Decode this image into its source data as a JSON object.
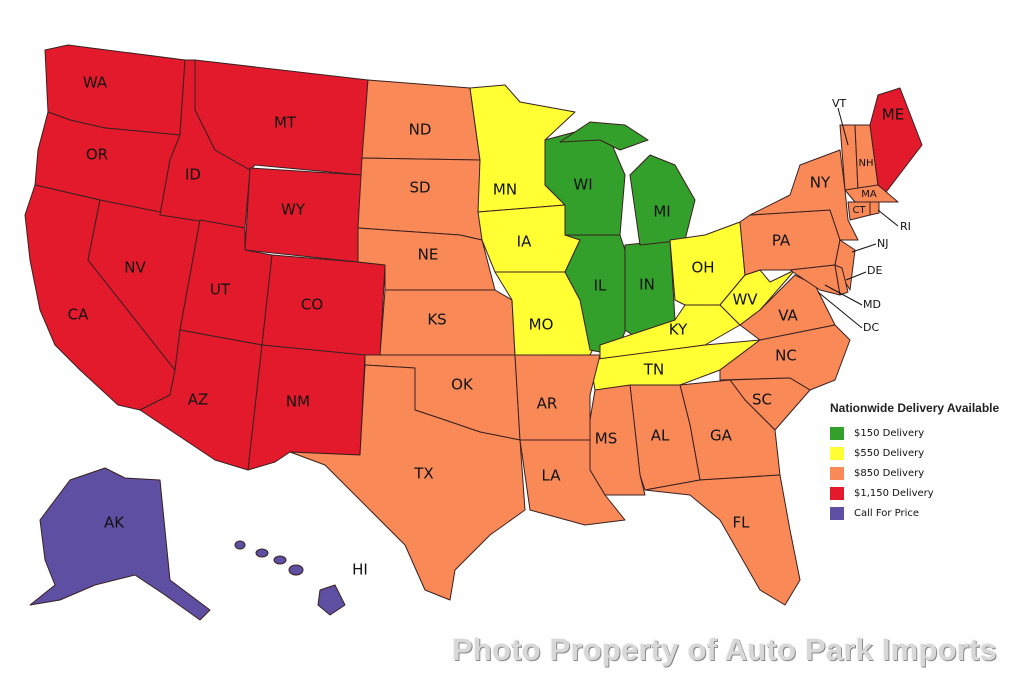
{
  "legend": {
    "title": "Nationwide Delivery Available",
    "items": [
      {
        "tier": "green",
        "label": "$150 Delivery",
        "color": "#34a02c"
      },
      {
        "tier": "yellow",
        "label": "$550 Delivery",
        "color": "#ffff33"
      },
      {
        "tier": "orange",
        "label": "$850 Delivery",
        "color": "#f98a58"
      },
      {
        "tier": "red",
        "label": "$1,150 Delivery",
        "color": "#e31a2c"
      },
      {
        "tier": "purple",
        "label": "Call For Price",
        "color": "#5e4fa2"
      }
    ]
  },
  "states": {
    "WA": {
      "label": "WA",
      "tier": "red"
    },
    "OR": {
      "label": "OR",
      "tier": "red"
    },
    "CA": {
      "label": "CA",
      "tier": "red"
    },
    "NV": {
      "label": "NV",
      "tier": "red"
    },
    "ID": {
      "label": "ID",
      "tier": "red"
    },
    "MT": {
      "label": "MT",
      "tier": "red"
    },
    "WY": {
      "label": "WY",
      "tier": "red"
    },
    "UT": {
      "label": "UT",
      "tier": "red"
    },
    "CO": {
      "label": "CO",
      "tier": "red"
    },
    "AZ": {
      "label": "AZ",
      "tier": "red"
    },
    "NM": {
      "label": "NM",
      "tier": "red"
    },
    "ME": {
      "label": "ME",
      "tier": "red"
    },
    "ND": {
      "label": "ND",
      "tier": "orange"
    },
    "SD": {
      "label": "SD",
      "tier": "orange"
    },
    "NE": {
      "label": "NE",
      "tier": "orange"
    },
    "KS": {
      "label": "KS",
      "tier": "orange"
    },
    "OK": {
      "label": "OK",
      "tier": "orange"
    },
    "TX": {
      "label": "TX",
      "tier": "orange"
    },
    "AR": {
      "label": "AR",
      "tier": "orange"
    },
    "LA": {
      "label": "LA",
      "tier": "orange"
    },
    "MS": {
      "label": "MS",
      "tier": "orange"
    },
    "AL": {
      "label": "AL",
      "tier": "orange"
    },
    "GA": {
      "label": "GA",
      "tier": "orange"
    },
    "FL": {
      "label": "FL",
      "tier": "orange"
    },
    "SC": {
      "label": "SC",
      "tier": "orange"
    },
    "NC": {
      "label": "NC",
      "tier": "orange"
    },
    "VA": {
      "label": "VA",
      "tier": "orange"
    },
    "PA": {
      "label": "PA",
      "tier": "orange"
    },
    "NY": {
      "label": "NY",
      "tier": "orange"
    },
    "NJ": {
      "label": "NJ",
      "tier": "orange"
    },
    "DE": {
      "label": "DE",
      "tier": "orange"
    },
    "MD": {
      "label": "MD",
      "tier": "orange"
    },
    "DC": {
      "label": "DC",
      "tier": "orange"
    },
    "VT": {
      "label": "VT",
      "tier": "orange"
    },
    "NH": {
      "label": "NH",
      "tier": "orange"
    },
    "MA": {
      "label": "MA",
      "tier": "orange"
    },
    "CT": {
      "label": "CT",
      "tier": "orange"
    },
    "RI": {
      "label": "RI",
      "tier": "orange"
    },
    "MN": {
      "label": "MN",
      "tier": "yellow"
    },
    "IA": {
      "label": "IA",
      "tier": "yellow"
    },
    "MO": {
      "label": "MO",
      "tier": "yellow"
    },
    "KY": {
      "label": "KY",
      "tier": "yellow"
    },
    "TN": {
      "label": "TN",
      "tier": "yellow"
    },
    "OH": {
      "label": "OH",
      "tier": "yellow"
    },
    "WV": {
      "label": "WV",
      "tier": "yellow"
    },
    "WI": {
      "label": "WI",
      "tier": "green"
    },
    "IL": {
      "label": "IL",
      "tier": "green"
    },
    "IN": {
      "label": "IN",
      "tier": "green"
    },
    "MI": {
      "label": "MI",
      "tier": "green"
    },
    "AK": {
      "label": "AK",
      "tier": "purple"
    },
    "HI": {
      "label": "HI",
      "tier": "purple"
    }
  },
  "watermark": "Photo Property of Auto Park Imports"
}
